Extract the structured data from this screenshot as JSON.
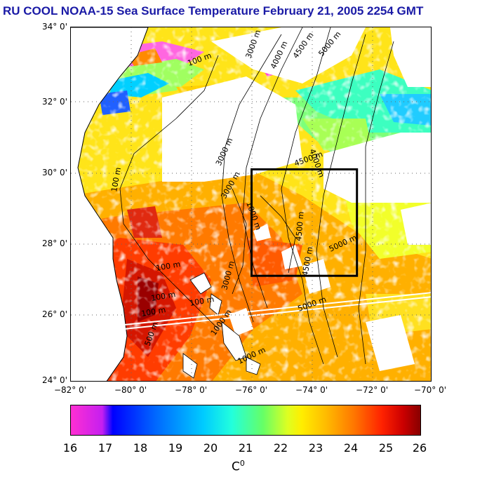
{
  "title": "RU COOL  NOAA-15 Sea Surface Temperature February 21, 2005 2254 GMT",
  "axes": {
    "lat_labels": [
      "34° 0'",
      "32° 0'",
      "30° 0'",
      "28° 0'",
      "26° 0'",
      "24° 0'"
    ],
    "lon_labels": [
      "−82° 0'",
      "−80° 0'",
      "−78° 0'",
      "−76° 0'",
      "−74° 0'",
      "−72° 0'",
      "−70° 0'"
    ]
  },
  "contour_labels": [
    "100 m",
    "3000 m",
    "4000 m",
    "4500 m",
    "5000 m",
    "100 m",
    "3000 m",
    "4000 m",
    "4500 m",
    "1000 m",
    "3000 m",
    "4500 m",
    "5000 m",
    "100 m",
    "100 m",
    "100 m",
    "100 m",
    "1000 m",
    "3000 m",
    "4500 m",
    "5000 m",
    "500 m",
    "1000 m"
  ],
  "box": {
    "lon_range": [
      -76,
      -72.5
    ],
    "lat_range": [
      27,
      30
    ]
  },
  "colorbar": {
    "ticks": [
      "16",
      "17",
      "18",
      "19",
      "20",
      "21",
      "22",
      "23",
      "24",
      "25",
      "26"
    ],
    "unit": "C",
    "unit_sup": "0"
  },
  "colors": {
    "title": "#1a1aa6",
    "land": "#ffffff",
    "box": "#000000"
  }
}
